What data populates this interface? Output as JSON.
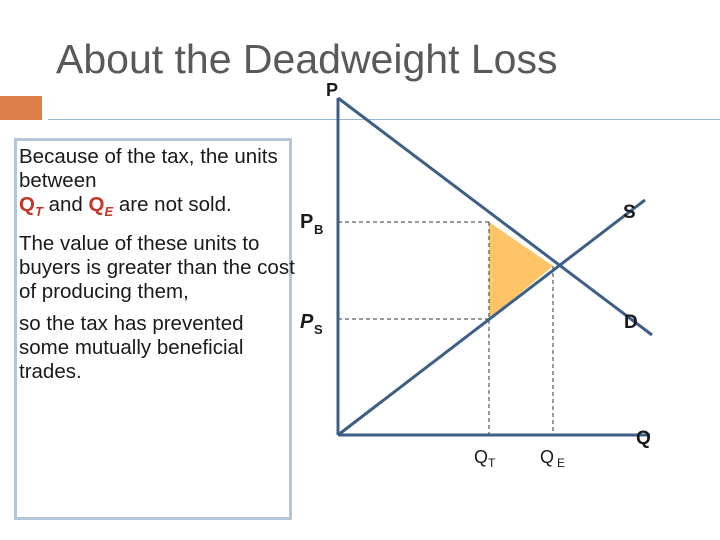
{
  "slide": {
    "title": "About the Deadweight Loss"
  },
  "text": {
    "line1": "Because of the tax, the units between",
    "q_sym": "Q",
    "q_t_sub": "T",
    "and": "and",
    "q_e_sub": "E",
    "not_sold": "are not sold.",
    "para2": "The value of these units to buyers is greater than the cost of producing them,",
    "para3": "so the tax has prevented some mutually beneficial trades."
  },
  "graph": {
    "p_axis_label": "P",
    "q_axis_label": "Q",
    "pb_main": "P",
    "pb_sub": "B",
    "ps_main": "P",
    "ps_sub": "S",
    "qt_main": "Q",
    "qt_sub": "T",
    "qe_main": "Q",
    "qe_sub": "E",
    "supply_label": "S",
    "demand_label": "D",
    "colors": {
      "curve": "#3d5f87",
      "deadweight_loss": "#ffc466",
      "dashed": "#333333"
    }
  }
}
